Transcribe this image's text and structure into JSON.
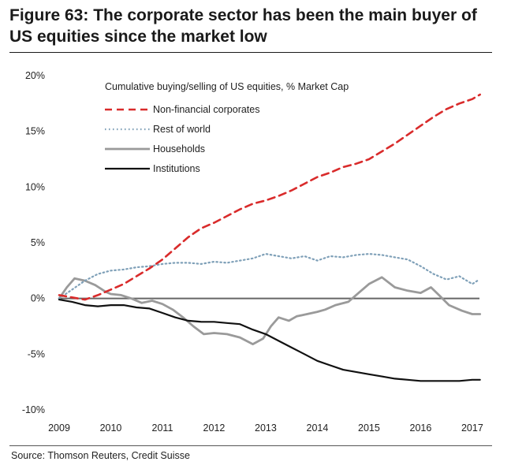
{
  "figure": {
    "title": "Figure 63: The corporate sector has been the main buyer of US equities since the market low",
    "source": "Source: Thomson Reuters, Credit Suisse"
  },
  "colors": {
    "non_financial": "#d92b2b",
    "rest_of_world": "#7fa0b8",
    "households": "#9a9a9a",
    "institutions": "#111111",
    "axis": "#666666"
  },
  "chart_data": {
    "type": "line",
    "title": "Cumulative buying/selling of US equities, % Market Cap",
    "xlabel": "",
    "ylabel": "",
    "xlim": [
      2009,
      2017.2
    ],
    "ylim": [
      -10,
      20
    ],
    "x_ticks": [
      2009,
      2010,
      2011,
      2012,
      2013,
      2014,
      2015,
      2016,
      2017
    ],
    "x_tick_labels": [
      "2009",
      "2010",
      "2011",
      "2012",
      "2013",
      "2014",
      "2015",
      "2016",
      "2017"
    ],
    "y_ticks": [
      20,
      15,
      10,
      5,
      0,
      -5,
      -10
    ],
    "y_tick_labels": [
      "20%",
      "15%",
      "10%",
      "5%",
      "0%",
      "-5%",
      "-10%"
    ],
    "legend_position": "top-left",
    "series": [
      {
        "name": "Non-financial corporates",
        "style": "dashed",
        "x": [
          2009,
          2009.25,
          2009.5,
          2009.75,
          2010,
          2010.25,
          2010.5,
          2010.75,
          2011,
          2011.25,
          2011.5,
          2011.75,
          2012,
          2012.25,
          2012.5,
          2012.75,
          2013,
          2013.25,
          2013.5,
          2013.75,
          2014,
          2014.25,
          2014.5,
          2014.75,
          2015,
          2015.25,
          2015.5,
          2015.75,
          2016,
          2016.25,
          2016.5,
          2016.75,
          2017,
          2017.15
        ],
        "values": [
          0.3,
          0.1,
          -0.1,
          0.3,
          0.8,
          1.3,
          2.0,
          2.7,
          3.5,
          4.5,
          5.5,
          6.3,
          6.8,
          7.4,
          8.0,
          8.5,
          8.8,
          9.2,
          9.7,
          10.3,
          10.9,
          11.3,
          11.8,
          12.1,
          12.5,
          13.2,
          13.9,
          14.7,
          15.5,
          16.3,
          17.0,
          17.5,
          17.9,
          18.3
        ]
      },
      {
        "name": "Rest of world",
        "style": "dotted",
        "x": [
          2009,
          2009.25,
          2009.5,
          2009.75,
          2010,
          2010.25,
          2010.5,
          2010.75,
          2011,
          2011.25,
          2011.5,
          2011.75,
          2012,
          2012.25,
          2012.5,
          2012.75,
          2013,
          2013.25,
          2013.5,
          2013.75,
          2014,
          2014.25,
          2014.5,
          2014.75,
          2015,
          2015.25,
          2015.5,
          2015.75,
          2016,
          2016.25,
          2016.5,
          2016.75,
          2017,
          2017.1
        ],
        "values": [
          0.0,
          0.8,
          1.6,
          2.2,
          2.5,
          2.6,
          2.8,
          2.9,
          3.1,
          3.2,
          3.2,
          3.1,
          3.3,
          3.2,
          3.4,
          3.6,
          4.0,
          3.8,
          3.6,
          3.8,
          3.4,
          3.8,
          3.7,
          3.9,
          4.0,
          3.9,
          3.7,
          3.5,
          2.9,
          2.2,
          1.7,
          2.0,
          1.3,
          1.6
        ]
      },
      {
        "name": "Households",
        "style": "solid",
        "x": [
          2009,
          2009.15,
          2009.3,
          2009.5,
          2009.7,
          2009.9,
          2010,
          2010.2,
          2010.4,
          2010.6,
          2010.8,
          2011,
          2011.2,
          2011.4,
          2011.6,
          2011.8,
          2012,
          2012.25,
          2012.5,
          2012.75,
          2012.95,
          2013.1,
          2013.25,
          2013.45,
          2013.6,
          2013.8,
          2014,
          2014.15,
          2014.35,
          2014.6,
          2014.8,
          2015,
          2015.25,
          2015.5,
          2015.75,
          2016,
          2016.2,
          2016.4,
          2016.55,
          2016.8,
          2017,
          2017.15
        ],
        "values": [
          0.0,
          1.0,
          1.8,
          1.6,
          1.2,
          0.6,
          0.4,
          0.3,
          0.0,
          -0.4,
          -0.2,
          -0.5,
          -1.0,
          -1.7,
          -2.5,
          -3.2,
          -3.1,
          -3.2,
          -3.5,
          -4.1,
          -3.6,
          -2.5,
          -1.7,
          -2.0,
          -1.6,
          -1.4,
          -1.2,
          -1.0,
          -0.6,
          -0.3,
          0.5,
          1.3,
          1.9,
          1.0,
          0.7,
          0.5,
          1.0,
          0.1,
          -0.6,
          -1.1,
          -1.4,
          -1.4
        ]
      },
      {
        "name": "Institutions",
        "style": "solid",
        "x": [
          2009,
          2009.25,
          2009.5,
          2009.75,
          2010,
          2010.25,
          2010.5,
          2010.75,
          2011,
          2011.25,
          2011.5,
          2011.75,
          2012,
          2012.25,
          2012.5,
          2012.75,
          2013,
          2013.25,
          2013.5,
          2013.75,
          2014,
          2014.25,
          2014.5,
          2014.75,
          2015,
          2015.25,
          2015.5,
          2015.75,
          2016,
          2016.25,
          2016.5,
          2016.75,
          2017,
          2017.15
        ],
        "values": [
          -0.1,
          -0.3,
          -0.6,
          -0.7,
          -0.6,
          -0.6,
          -0.8,
          -0.9,
          -1.3,
          -1.7,
          -2.0,
          -2.1,
          -2.1,
          -2.2,
          -2.3,
          -2.8,
          -3.2,
          -3.8,
          -4.4,
          -5.0,
          -5.6,
          -6.0,
          -6.4,
          -6.6,
          -6.8,
          -7.0,
          -7.2,
          -7.3,
          -7.4,
          -7.4,
          -7.4,
          -7.4,
          -7.3,
          -7.3
        ]
      }
    ]
  }
}
